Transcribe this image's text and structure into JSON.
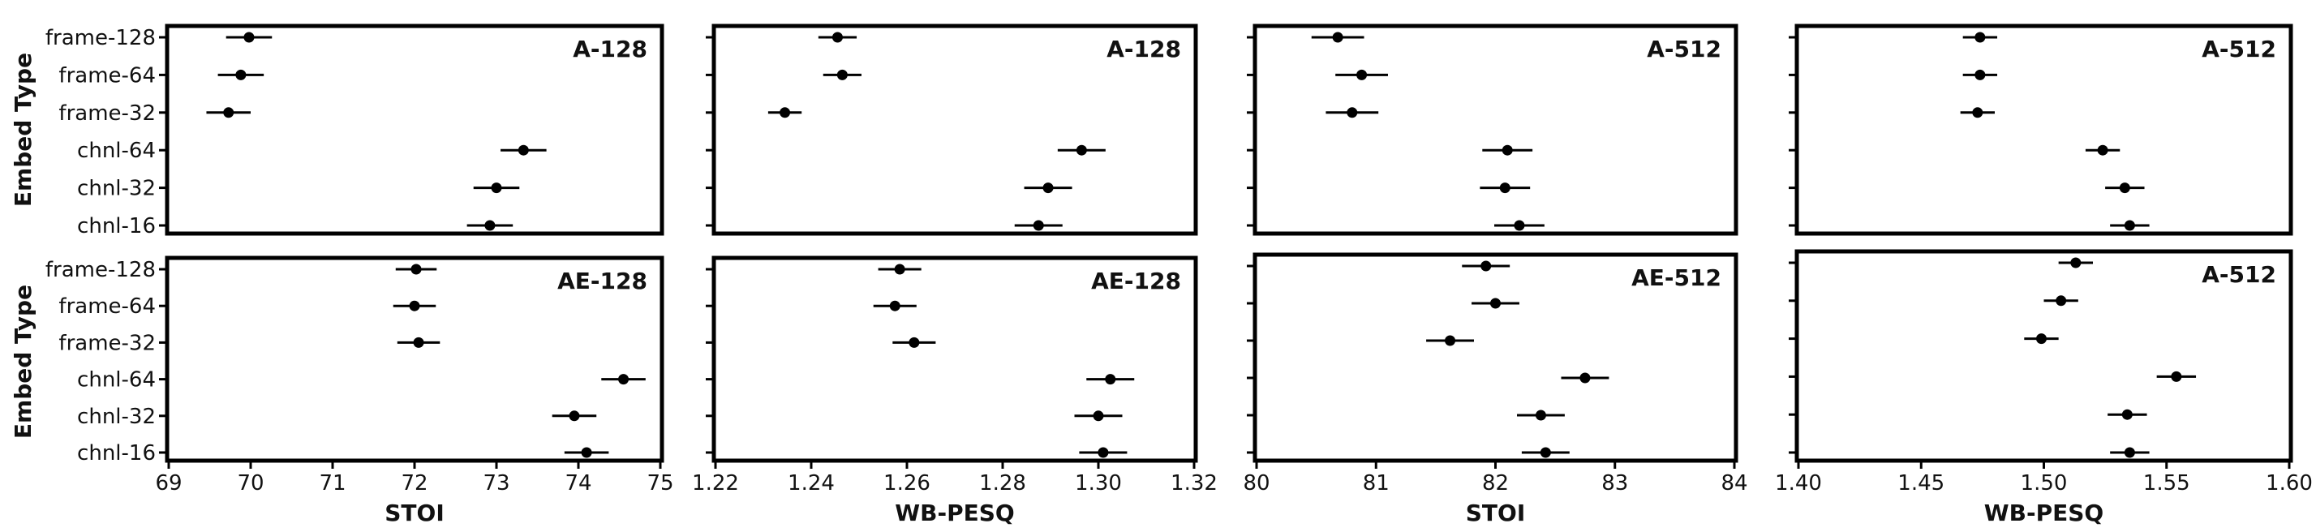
{
  "figure": {
    "ylabel": "Embed Type"
  },
  "chart_data": [
    {
      "type": "scatter",
      "title": "A-128",
      "xlabel": "",
      "ylabel": "Embed Type",
      "xlim": [
        69,
        75
      ],
      "xticks": [],
      "categories": [
        "frame-128",
        "frame-64",
        "frame-32",
        "chnl-64",
        "chnl-32",
        "chnl-16"
      ],
      "x": [
        69.98,
        69.88,
        69.73,
        73.33,
        73.0,
        72.92
      ],
      "xerr": [
        0.28,
        0.28,
        0.27,
        0.28,
        0.28,
        0.28
      ],
      "grid": false
    },
    {
      "type": "scatter",
      "title": "A-128",
      "xlabel": "",
      "ylabel": "",
      "xlim": [
        1.22,
        1.32
      ],
      "xticks": [],
      "categories": [
        "frame-128",
        "frame-64",
        "frame-32",
        "chnl-64",
        "chnl-32",
        "chnl-16"
      ],
      "x": [
        1.2455,
        1.2465,
        1.2345,
        1.2965,
        1.2895,
        1.2875
      ],
      "xerr": [
        0.004,
        0.004,
        0.0035,
        0.005,
        0.005,
        0.005
      ],
      "grid": false
    },
    {
      "type": "scatter",
      "title": "A-512",
      "xlabel": "",
      "ylabel": "",
      "xlim": [
        80,
        84
      ],
      "xticks": [],
      "categories": [
        "frame-128",
        "frame-64",
        "frame-32",
        "chnl-64",
        "chnl-32",
        "chnl-16"
      ],
      "x": [
        80.68,
        80.88,
        80.8,
        82.1,
        82.08,
        82.2
      ],
      "xerr": [
        0.22,
        0.22,
        0.22,
        0.21,
        0.21,
        0.21
      ],
      "grid": false
    },
    {
      "type": "scatter",
      "title": "A-512",
      "xlabel": "",
      "ylabel": "",
      "xlim": [
        1.4,
        1.6
      ],
      "xticks": [],
      "categories": [
        "frame-128",
        "frame-64",
        "frame-32",
        "chnl-64",
        "chnl-32",
        "chnl-16"
      ],
      "x": [
        1.474,
        1.474,
        1.473,
        1.524,
        1.533,
        1.535
      ],
      "xerr": [
        0.007,
        0.007,
        0.007,
        0.007,
        0.008,
        0.008
      ],
      "grid": false
    },
    {
      "type": "scatter",
      "title": "AE-128",
      "xlabel": "STOI",
      "ylabel": "Embed Type",
      "xlim": [
        69,
        75
      ],
      "xticks": [
        "69",
        "70",
        "71",
        "72",
        "73",
        "74",
        "75"
      ],
      "categories": [
        "frame-128",
        "frame-64",
        "frame-32",
        "chnl-64",
        "chnl-32",
        "chnl-16"
      ],
      "x": [
        72.02,
        72.0,
        72.05,
        74.55,
        73.95,
        74.1
      ],
      "xerr": [
        0.25,
        0.26,
        0.26,
        0.27,
        0.27,
        0.27
      ],
      "grid": false
    },
    {
      "type": "scatter",
      "title": "AE-128",
      "xlabel": "WB-PESQ",
      "ylabel": "",
      "xlim": [
        1.22,
        1.32
      ],
      "xticks": [
        "1.22",
        "1.24",
        "1.26",
        "1.28",
        "1.30",
        "1.32"
      ],
      "categories": [
        "frame-128",
        "frame-64",
        "frame-32",
        "chnl-64",
        "chnl-32",
        "chnl-16"
      ],
      "x": [
        1.2585,
        1.2575,
        1.2615,
        1.3025,
        1.3,
        1.301
      ],
      "xerr": [
        0.0045,
        0.0045,
        0.0045,
        0.005,
        0.005,
        0.005
      ],
      "grid": false
    },
    {
      "type": "scatter",
      "title": "AE-512",
      "xlabel": "STOI",
      "ylabel": "",
      "xlim": [
        80,
        84
      ],
      "xticks": [
        "80",
        "81",
        "82",
        "83",
        "84"
      ],
      "categories": [
        "frame-128",
        "frame-64",
        "frame-32",
        "chnl-64",
        "chnl-32",
        "chnl-16"
      ],
      "x": [
        81.92,
        82.0,
        81.62,
        82.75,
        82.38,
        82.42
      ],
      "xerr": [
        0.2,
        0.2,
        0.2,
        0.2,
        0.2,
        0.2
      ],
      "grid": false
    },
    {
      "type": "scatter",
      "title": "A-512",
      "xlabel": "WB-PESQ",
      "ylabel": "",
      "xlim": [
        1.4,
        1.6
      ],
      "xticks": [
        "1.40",
        "1.45",
        "1.50",
        "1.55",
        "1.60"
      ],
      "categories": [
        "frame-128",
        "frame-64",
        "frame-32",
        "chnl-64",
        "chnl-32",
        "chnl-16"
      ],
      "x": [
        1.513,
        1.507,
        1.499,
        1.554,
        1.534,
        1.535
      ],
      "xerr": [
        0.007,
        0.007,
        0.007,
        0.008,
        0.008,
        0.008
      ],
      "grid": false
    }
  ]
}
